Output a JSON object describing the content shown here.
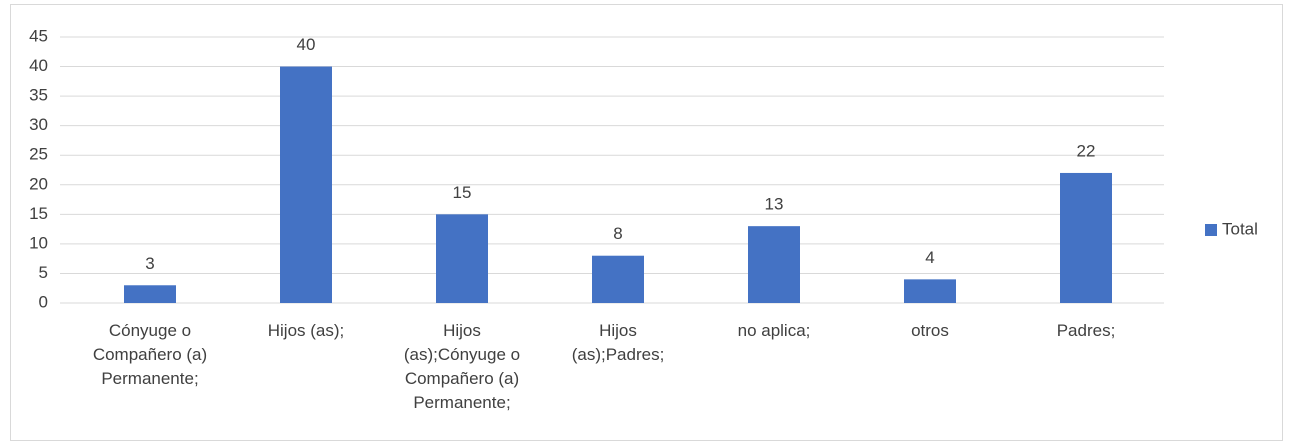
{
  "chart_data": {
    "type": "bar",
    "categories": [
      "Cónyuge o Compañero (a) Permanente;",
      "Hijos (as);",
      "Hijos (as);Cónyuge o Compañero (a) Permanente;",
      "Hijos (as);Padres;",
      "no aplica;",
      "otros",
      "Padres;"
    ],
    "series": [
      {
        "name": "Total",
        "color": "#4472c4",
        "values": [
          3,
          40,
          15,
          8,
          13,
          4,
          22
        ]
      }
    ],
    "ylim": [
      0,
      45
    ],
    "yticks": [
      0,
      5,
      10,
      15,
      20,
      25,
      30,
      35,
      40,
      45
    ],
    "grid": true,
    "legend": "right"
  }
}
